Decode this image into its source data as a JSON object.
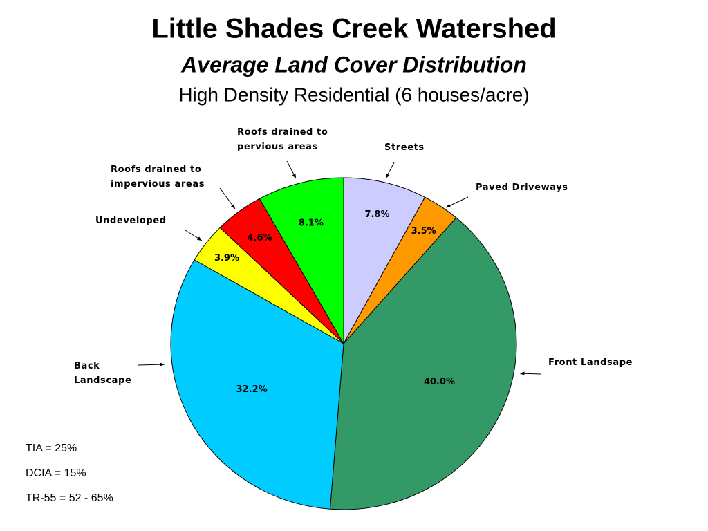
{
  "chart_data": {
    "type": "pie",
    "title": "Little Shades Creek Watershed",
    "subtitles": [
      "Average Land Cover Distribution",
      "High Density Residential (6 houses/acre)"
    ],
    "categories": [
      "Streets",
      "Paved Driveways",
      "Front Landsape",
      "Back Landscape",
      "Undeveloped",
      "Roofs drained to impervious areas",
      "Roofs drained to pervious areas"
    ],
    "values": [
      7.8,
      3.5,
      40.0,
      32.2,
      3.9,
      4.6,
      8.1
    ],
    "value_labels": [
      "7.8%",
      "3.5%",
      "40.0%",
      "32.2%",
      "3.9%",
      "4.6%",
      "8.1%"
    ],
    "colors": [
      "#ccccff",
      "#ff9900",
      "#339966",
      "#00ccff",
      "#ffff00",
      "#ff0000",
      "#00ff00"
    ],
    "annotations": [
      "TIA = 25%",
      "DCIA = 15%",
      "TR-55 = 52 - 65%"
    ]
  }
}
